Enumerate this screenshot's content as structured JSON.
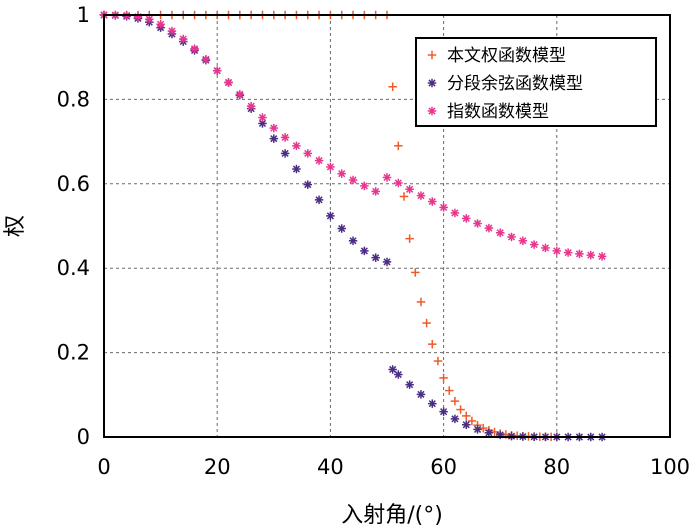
{
  "chart_data": {
    "type": "scatter",
    "title": "",
    "xlabel": "入射角/(°)",
    "ylabel": "权",
    "xlim": [
      0,
      100
    ],
    "ylim": [
      0,
      1
    ],
    "xticks": [
      0,
      20,
      40,
      60,
      80,
      100
    ],
    "xtick_labels": [
      "0",
      "20",
      "40",
      "60",
      "80",
      "100"
    ],
    "yticks": [
      0,
      0.2,
      0.4,
      0.6,
      0.8,
      1
    ],
    "ytick_labels": [
      "0",
      "0.2",
      "0.4",
      "0.6",
      "0.8",
      "1"
    ],
    "grid": true,
    "legend_position": "top-right",
    "series": [
      {
        "name": "本文权函数模型",
        "color": "#f05a28",
        "marker": "plus",
        "x": [
          0,
          2,
          4,
          6,
          8,
          10,
          12,
          14,
          16,
          18,
          20,
          22,
          24,
          26,
          28,
          30,
          32,
          34,
          36,
          38,
          40,
          42,
          44,
          46,
          48,
          50,
          51,
          52,
          53,
          54,
          55,
          56,
          57,
          58,
          59,
          60,
          61,
          62,
          63,
          64,
          65,
          66,
          67,
          68,
          69,
          70,
          71,
          72,
          73,
          74,
          75,
          76,
          77,
          78,
          79,
          80
        ],
        "y": [
          1,
          1,
          1,
          1,
          1,
          1,
          1,
          1,
          1,
          1,
          1,
          1,
          1,
          1,
          1,
          1,
          1,
          1,
          1,
          1,
          1,
          1,
          1,
          1,
          1,
          1,
          0.83,
          0.69,
          0.57,
          0.47,
          0.39,
          0.32,
          0.27,
          0.22,
          0.18,
          0.14,
          0.11,
          0.085,
          0.065,
          0.05,
          0.038,
          0.028,
          0.021,
          0.016,
          0.012,
          0.008,
          0.006,
          0.004,
          0.003,
          0.002,
          0.0015,
          0.001,
          0.0007,
          0.0005,
          0.0003,
          0.0002
        ]
      },
      {
        "name": "分段余弦函数模型",
        "color": "#4b2d84",
        "marker": "star",
        "x": [
          0,
          2,
          4,
          6,
          8,
          10,
          12,
          14,
          16,
          18,
          20,
          22,
          24,
          26,
          28,
          30,
          32,
          34,
          36,
          38,
          40,
          42,
          44,
          46,
          48,
          50,
          51,
          52,
          54,
          56,
          58,
          60,
          62,
          64,
          66,
          68,
          70,
          72,
          74,
          76,
          78,
          80,
          82,
          84,
          86,
          88
        ],
        "y": [
          1,
          0.999,
          0.997,
          0.992,
          0.983,
          0.97,
          0.955,
          0.937,
          0.916,
          0.893,
          0.868,
          0.84,
          0.81,
          0.778,
          0.743,
          0.707,
          0.672,
          0.635,
          0.598,
          0.562,
          0.524,
          0.494,
          0.465,
          0.441,
          0.425,
          0.415,
          0.16,
          0.148,
          0.124,
          0.101,
          0.079,
          0.06,
          0.043,
          0.029,
          0.018,
          0.01,
          0.005,
          0.002,
          0.001,
          0.0005,
          0.0002,
          0.0001,
          0,
          0,
          0,
          0
        ]
      },
      {
        "name": "指数函数模型",
        "color": "#e8368f",
        "marker": "star",
        "x": [
          0,
          2,
          4,
          6,
          8,
          10,
          12,
          14,
          16,
          18,
          20,
          22,
          24,
          26,
          28,
          30,
          32,
          34,
          36,
          38,
          40,
          42,
          44,
          46,
          48,
          50,
          52,
          54,
          56,
          58,
          60,
          62,
          64,
          66,
          68,
          70,
          72,
          74,
          76,
          78,
          80,
          82,
          84,
          86,
          88
        ],
        "y": [
          1,
          1,
          0.999,
          0.996,
          0.99,
          0.978,
          0.962,
          0.943,
          0.92,
          0.895,
          0.868,
          0.84,
          0.812,
          0.784,
          0.757,
          0.732,
          0.71,
          0.69,
          0.672,
          0.655,
          0.64,
          0.624,
          0.609,
          0.595,
          0.582,
          0.615,
          0.602,
          0.587,
          0.572,
          0.558,
          0.544,
          0.531,
          0.518,
          0.506,
          0.495,
          0.484,
          0.474,
          0.465,
          0.456,
          0.448,
          0.441,
          0.437,
          0.434,
          0.431,
          0.428
        ]
      }
    ]
  }
}
